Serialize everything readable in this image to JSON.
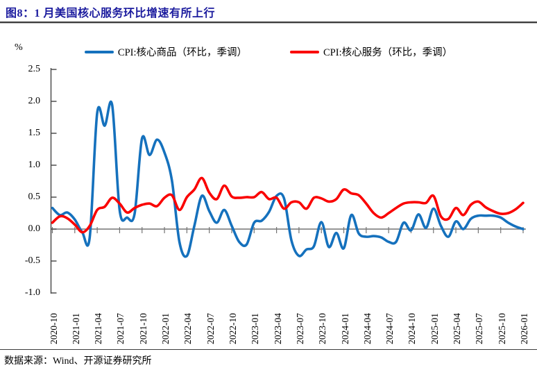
{
  "header": {
    "title": "图8：1 月美国核心服务环比增速有所上行"
  },
  "footer": {
    "source": "数据来源：Wind、开源证券研究所"
  },
  "chart_data": {
    "type": "line",
    "title": "图8：1 月美国核心服务环比增速有所上行",
    "unit_label": "%",
    "xlabel": "",
    "ylabel": "%",
    "ylim": [
      -1.0,
      2.5
    ],
    "y_tick_labels": [
      "2.5",
      "2.0",
      "1.5",
      "1.0",
      "0.5",
      "0.0",
      "-0.5",
      "-1.0"
    ],
    "x_start_month": "2020-10",
    "x_end_month": "2026-01",
    "x_tick_labels": [
      "2020-10",
      "2021-01",
      "2021-04",
      "2021-07",
      "2021-10",
      "2022-01",
      "2022-04",
      "2022-07",
      "2022-10",
      "2023-01",
      "2023-04",
      "2023-07",
      "2023-10",
      "2024-01",
      "2024-04",
      "2024-07",
      "2024-10",
      "2025-01",
      "2025-04",
      "2025-07",
      "2025-10",
      "2026-01"
    ],
    "grid": "zero-baseline-only",
    "legend_position": "top-center",
    "legend": [
      {
        "name": "CPI:核心商品（环比，季调）",
        "color": "#1571bd"
      },
      {
        "name": "CPI:核心服务（环比，季调）",
        "color": "#fa0000"
      }
    ],
    "series": [
      {
        "name": "CPI:核心商品（环比，季调）",
        "color": "#1571bd",
        "values": [
          0.33,
          0.22,
          0.26,
          0.15,
          -0.05,
          -0.13,
          1.82,
          1.62,
          1.94,
          0.3,
          0.18,
          0.24,
          1.42,
          1.16,
          1.4,
          1.2,
          0.76,
          -0.2,
          -0.42,
          0.05,
          0.52,
          0.28,
          0.1,
          0.3,
          0.05,
          -0.2,
          -0.24,
          0.1,
          0.13,
          0.27,
          0.52,
          0.48,
          -0.18,
          -0.42,
          -0.32,
          -0.27,
          0.11,
          -0.28,
          -0.06,
          -0.3,
          0.22,
          -0.07,
          -0.12,
          -0.11,
          -0.13,
          -0.2,
          -0.2,
          0.1,
          -0.02,
          0.23,
          0.02,
          0.32,
          0.05,
          -0.12,
          0.12,
          0.0,
          0.16,
          0.21,
          0.21,
          0.21,
          0.18,
          0.1,
          0.04,
          0.0
        ]
      },
      {
        "name": "CPI:核心服务（环比，季调）",
        "color": "#fa0000",
        "values": [
          0.1,
          0.2,
          0.17,
          0.07,
          -0.05,
          0.05,
          0.3,
          0.35,
          0.49,
          0.4,
          0.26,
          0.33,
          0.38,
          0.4,
          0.36,
          0.49,
          0.53,
          0.3,
          0.5,
          0.62,
          0.8,
          0.57,
          0.47,
          0.68,
          0.51,
          0.49,
          0.5,
          0.5,
          0.58,
          0.47,
          0.49,
          0.32,
          0.42,
          0.42,
          0.32,
          0.49,
          0.48,
          0.43,
          0.47,
          0.62,
          0.56,
          0.53,
          0.4,
          0.25,
          0.18,
          0.25,
          0.33,
          0.4,
          0.42,
          0.42,
          0.41,
          0.52,
          0.2,
          0.16,
          0.33,
          0.22,
          0.38,
          0.43,
          0.34,
          0.28,
          0.24,
          0.25,
          0.31,
          0.41
        ]
      }
    ]
  }
}
